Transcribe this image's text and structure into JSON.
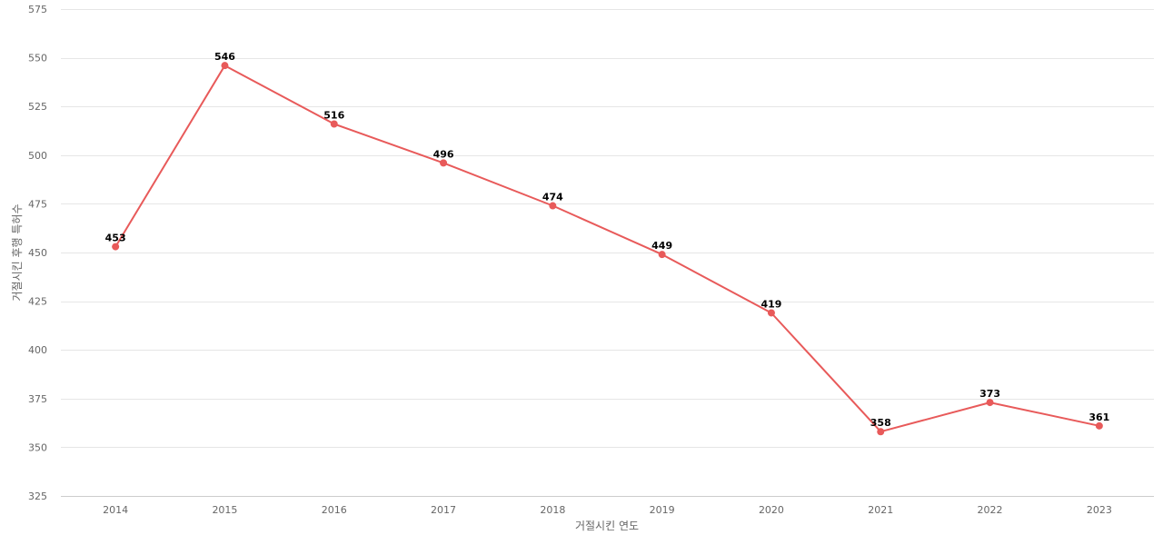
{
  "chart_data": {
    "type": "line",
    "title": "",
    "xlabel": "거절시킨 연도",
    "ylabel": "거절시킨 후행 특허수",
    "categories": [
      "2014",
      "2015",
      "2016",
      "2017",
      "2018",
      "2019",
      "2020",
      "2021",
      "2022",
      "2023"
    ],
    "series": [
      {
        "values": [
          453,
          546,
          516,
          496,
          474,
          449,
          419,
          358,
          373,
          361
        ],
        "color": "#e85a5a"
      }
    ],
    "ylim": [
      325,
      575
    ],
    "yticks": [
      325,
      350,
      375,
      400,
      425,
      450,
      475,
      500,
      525,
      550,
      575
    ],
    "grid": true,
    "data_labels": true
  }
}
